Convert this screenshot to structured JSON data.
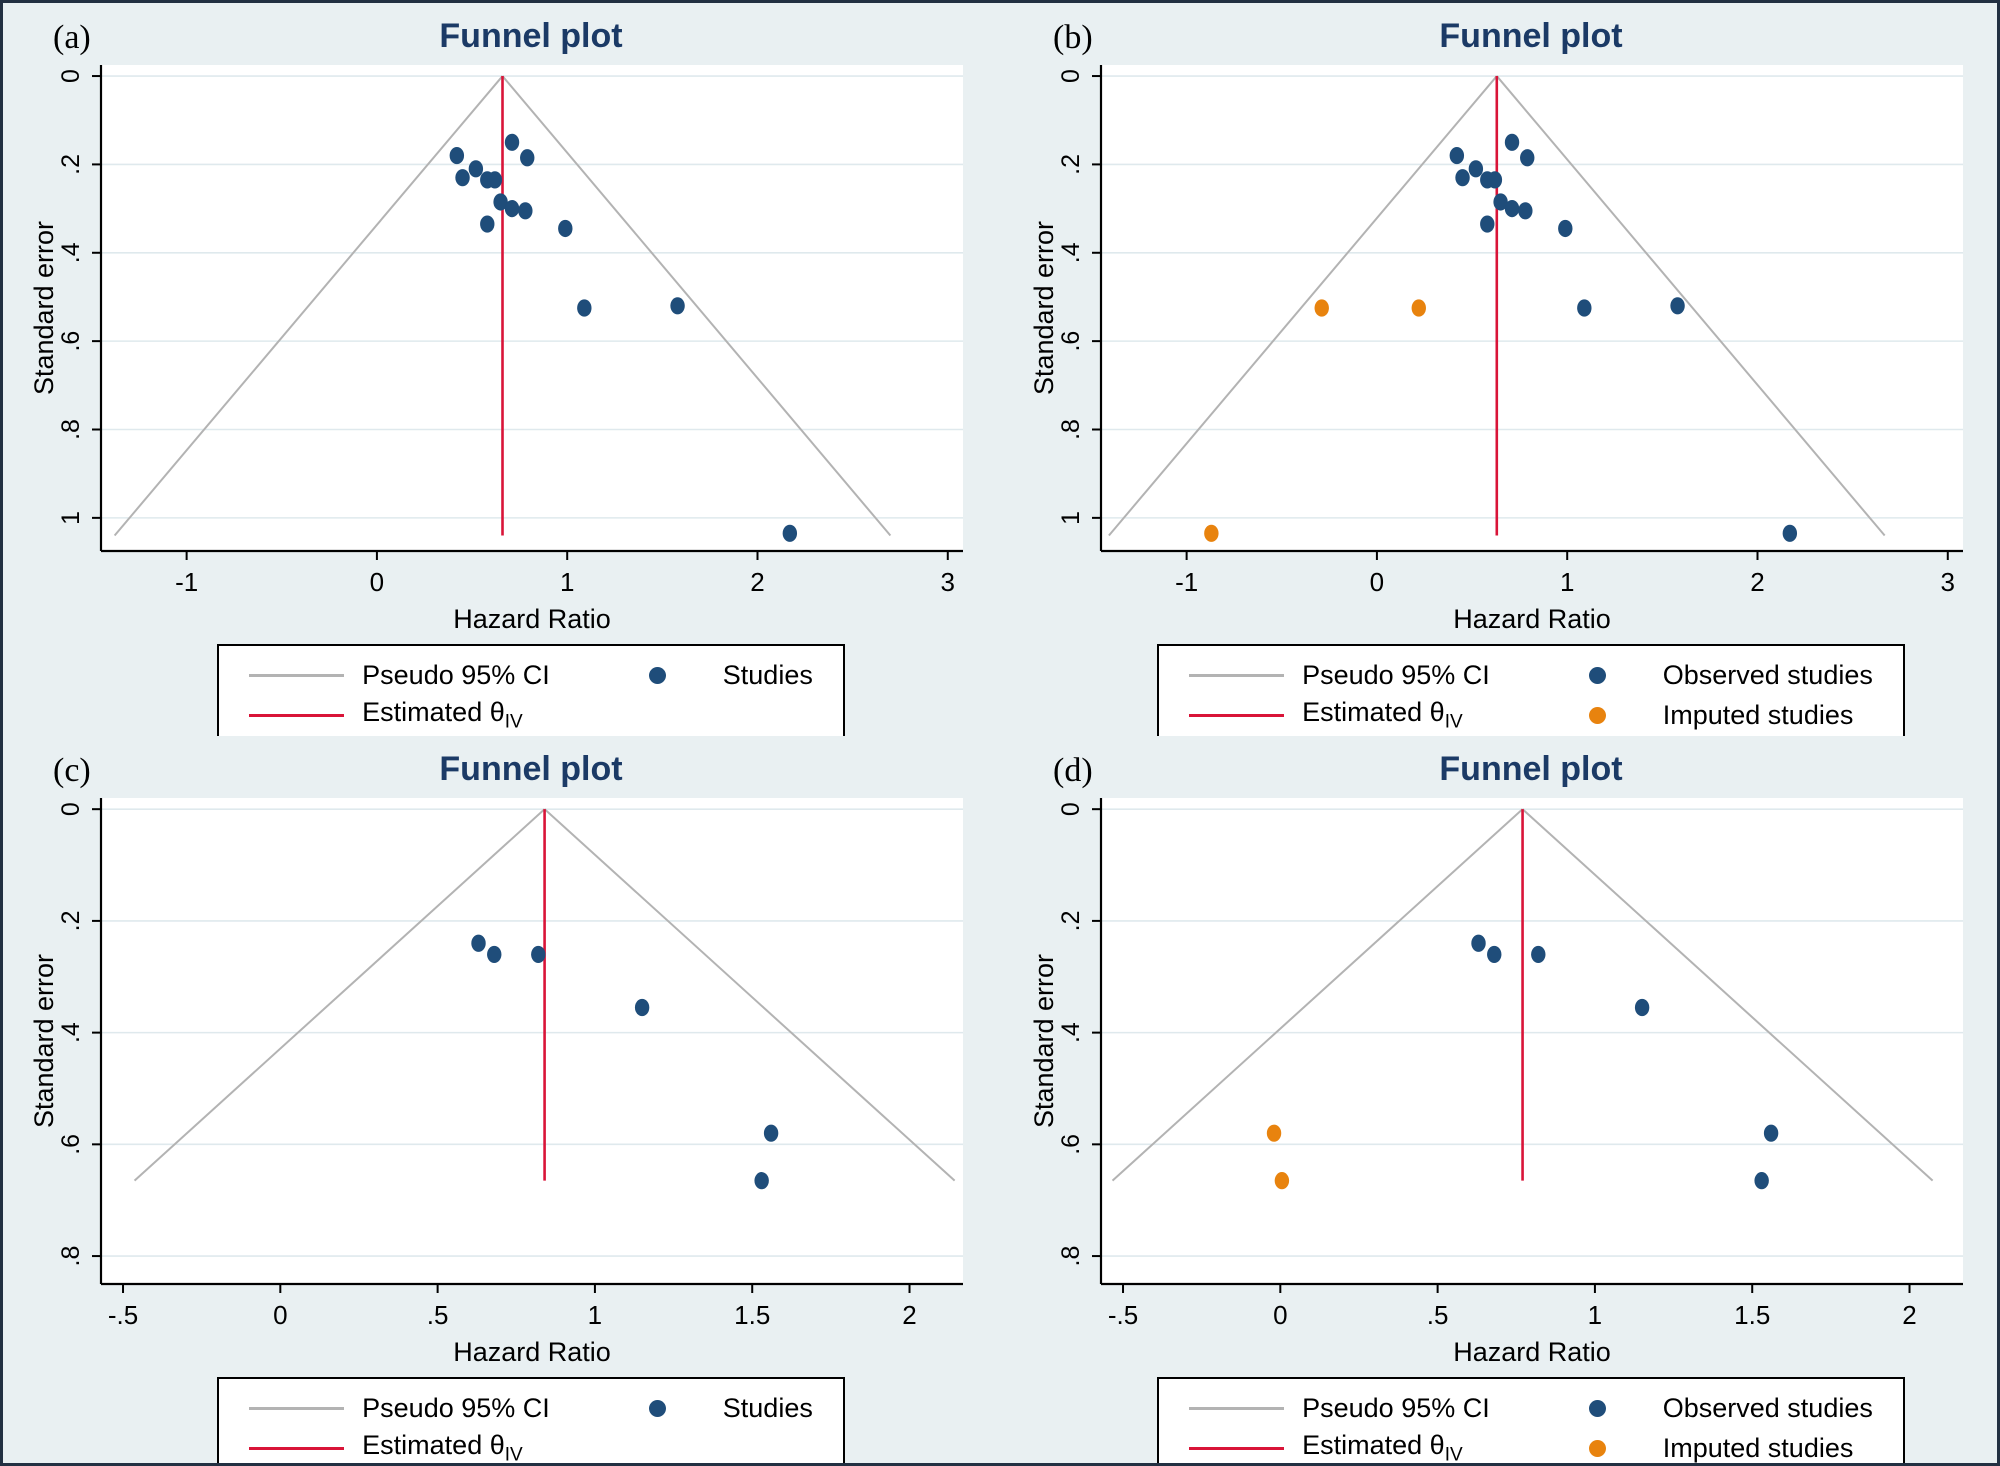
{
  "colors": {
    "background": "#e9f0f2",
    "plot_background": "#ffffff",
    "gridline": "#dfe9ed",
    "axis": "#000000",
    "title": "#1b3a66",
    "observed_dot": "#1f4d7a",
    "imputed_dot": "#e8830e",
    "estimate_line": "#d91438",
    "ci_line": "#b3b3b3",
    "frame_border": "#223042",
    "legend_border": "#000000"
  },
  "chart_data": [
    {
      "id": "a",
      "panel_label": "(a)",
      "type": "scatter",
      "title": "Funnel plot",
      "xlabel": "Hazard Ratio",
      "ylabel": "Standard error",
      "xlim": [
        -1.45,
        3.08
      ],
      "ylim": [
        -0.025,
        1.075
      ],
      "y_axis_inverted": true,
      "grid": "horizontal-only",
      "xticks": [
        {
          "v": -1,
          "label": "-1"
        },
        {
          "v": 0,
          "label": "0"
        },
        {
          "v": 1,
          "label": "1"
        },
        {
          "v": 2,
          "label": "2"
        },
        {
          "v": 3,
          "label": "3"
        }
      ],
      "yticks": [
        {
          "v": 0,
          "label": "0"
        },
        {
          "v": 0.2,
          "label": ".2"
        },
        {
          "v": 0.4,
          "label": ".4"
        },
        {
          "v": 0.6,
          "label": ".6"
        },
        {
          "v": 0.8,
          "label": ".8"
        },
        {
          "v": 1,
          "label": "1"
        }
      ],
      "estimated_theta_iv": 0.66,
      "funnel": {
        "apex_x": 0.66,
        "max_se": 1.04,
        "ci_multiplier": 1.96
      },
      "series": [
        {
          "name": "Studies",
          "color_key": "observed_dot",
          "points": [
            [
              0.42,
              0.18
            ],
            [
              0.71,
              0.15
            ],
            [
              0.79,
              0.185
            ],
            [
              0.52,
              0.21
            ],
            [
              0.45,
              0.23
            ],
            [
              0.58,
              0.235
            ],
            [
              0.62,
              0.235
            ],
            [
              0.65,
              0.285
            ],
            [
              0.71,
              0.3
            ],
            [
              0.78,
              0.305
            ],
            [
              0.58,
              0.335
            ],
            [
              0.99,
              0.345
            ],
            [
              1.09,
              0.525
            ],
            [
              1.58,
              0.52
            ],
            [
              2.17,
              1.035
            ]
          ]
        }
      ],
      "legend": [
        {
          "symbol": "line",
          "color_key": "ci_line",
          "label": "Pseudo 95% CI"
        },
        {
          "symbol": "line",
          "color_key": "estimate_line",
          "label": "Estimated θ",
          "label_subscript": "IV"
        },
        {
          "symbol": "dot",
          "color_key": "observed_dot",
          "label": "Studies"
        }
      ]
    },
    {
      "id": "b",
      "panel_label": "(b)",
      "type": "scatter",
      "title": "Funnel plot",
      "xlabel": "Hazard Ratio",
      "ylabel": "Standard error",
      "xlim": [
        -1.45,
        3.08
      ],
      "ylim": [
        -0.025,
        1.075
      ],
      "y_axis_inverted": true,
      "grid": "horizontal-only",
      "xticks": [
        {
          "v": -1,
          "label": "-1"
        },
        {
          "v": 0,
          "label": "0"
        },
        {
          "v": 1,
          "label": "1"
        },
        {
          "v": 2,
          "label": "2"
        },
        {
          "v": 3,
          "label": "3"
        }
      ],
      "yticks": [
        {
          "v": 0,
          "label": "0"
        },
        {
          "v": 0.2,
          "label": ".2"
        },
        {
          "v": 0.4,
          "label": ".4"
        },
        {
          "v": 0.6,
          "label": ".6"
        },
        {
          "v": 0.8,
          "label": ".8"
        },
        {
          "v": 1,
          "label": "1"
        }
      ],
      "estimated_theta_iv": 0.63,
      "funnel": {
        "apex_x": 0.63,
        "max_se": 1.04,
        "ci_multiplier": 1.96
      },
      "series": [
        {
          "name": "Observed studies",
          "color_key": "observed_dot",
          "points": [
            [
              0.42,
              0.18
            ],
            [
              0.71,
              0.15
            ],
            [
              0.79,
              0.185
            ],
            [
              0.52,
              0.21
            ],
            [
              0.45,
              0.23
            ],
            [
              0.58,
              0.235
            ],
            [
              0.62,
              0.235
            ],
            [
              0.65,
              0.285
            ],
            [
              0.71,
              0.3
            ],
            [
              0.78,
              0.305
            ],
            [
              0.58,
              0.335
            ],
            [
              0.99,
              0.345
            ],
            [
              1.09,
              0.525
            ],
            [
              1.58,
              0.52
            ],
            [
              2.17,
              1.035
            ]
          ]
        },
        {
          "name": "Imputed studies",
          "color_key": "imputed_dot",
          "points": [
            [
              -0.29,
              0.525
            ],
            [
              0.22,
              0.525
            ],
            [
              -0.87,
              1.035
            ]
          ]
        }
      ],
      "legend": [
        {
          "symbol": "line",
          "color_key": "ci_line",
          "label": "Pseudo 95% CI"
        },
        {
          "symbol": "line",
          "color_key": "estimate_line",
          "label": "Estimated θ",
          "label_subscript": "IV"
        },
        {
          "symbol": "dot",
          "color_key": "observed_dot",
          "label": "Observed studies"
        },
        {
          "symbol": "dot",
          "color_key": "imputed_dot",
          "label": "Imputed studies"
        }
      ]
    },
    {
      "id": "c",
      "panel_label": "(c)",
      "type": "scatter",
      "title": "Funnel plot",
      "xlabel": "Hazard Ratio",
      "ylabel": "Standard error",
      "xlim": [
        -0.57,
        2.17
      ],
      "ylim": [
        -0.02,
        0.85
      ],
      "y_axis_inverted": true,
      "grid": "horizontal-only",
      "xticks": [
        {
          "v": -0.5,
          "label": "-.5"
        },
        {
          "v": 0,
          "label": "0"
        },
        {
          "v": 0.5,
          "label": ".5"
        },
        {
          "v": 1,
          "label": "1"
        },
        {
          "v": 1.5,
          "label": "1.5"
        },
        {
          "v": 2,
          "label": "2"
        }
      ],
      "yticks": [
        {
          "v": 0,
          "label": "0"
        },
        {
          "v": 0.2,
          "label": ".2"
        },
        {
          "v": 0.4,
          "label": ".4"
        },
        {
          "v": 0.6,
          "label": ".6"
        },
        {
          "v": 0.8,
          "label": ".8"
        }
      ],
      "estimated_theta_iv": 0.84,
      "funnel": {
        "apex_x": 0.84,
        "max_se": 0.665,
        "ci_multiplier": 1.96
      },
      "series": [
        {
          "name": "Studies",
          "color_key": "observed_dot",
          "points": [
            [
              0.63,
              0.24
            ],
            [
              0.68,
              0.26
            ],
            [
              0.82,
              0.26
            ],
            [
              1.15,
              0.355
            ],
            [
              1.56,
              0.58
            ],
            [
              1.53,
              0.665
            ]
          ]
        }
      ],
      "legend": [
        {
          "symbol": "line",
          "color_key": "ci_line",
          "label": "Pseudo 95% CI"
        },
        {
          "symbol": "line",
          "color_key": "estimate_line",
          "label": "Estimated θ",
          "label_subscript": "IV"
        },
        {
          "symbol": "dot",
          "color_key": "observed_dot",
          "label": "Studies"
        }
      ]
    },
    {
      "id": "d",
      "panel_label": "(d)",
      "type": "scatter",
      "title": "Funnel plot",
      "xlabel": "Hazard Ratio",
      "ylabel": "Standard error",
      "xlim": [
        -0.57,
        2.17
      ],
      "ylim": [
        -0.02,
        0.85
      ],
      "y_axis_inverted": true,
      "grid": "horizontal-only",
      "xticks": [
        {
          "v": -0.5,
          "label": "-.5"
        },
        {
          "v": 0,
          "label": "0"
        },
        {
          "v": 0.5,
          "label": ".5"
        },
        {
          "v": 1,
          "label": "1"
        },
        {
          "v": 1.5,
          "label": "1.5"
        },
        {
          "v": 2,
          "label": "2"
        }
      ],
      "yticks": [
        {
          "v": 0,
          "label": "0"
        },
        {
          "v": 0.2,
          "label": ".2"
        },
        {
          "v": 0.4,
          "label": ".4"
        },
        {
          "v": 0.6,
          "label": ".6"
        },
        {
          "v": 0.8,
          "label": ".8"
        }
      ],
      "estimated_theta_iv": 0.77,
      "funnel": {
        "apex_x": 0.77,
        "max_se": 0.665,
        "ci_multiplier": 1.96
      },
      "series": [
        {
          "name": "Observed studies",
          "color_key": "observed_dot",
          "points": [
            [
              0.63,
              0.24
            ],
            [
              0.68,
              0.26
            ],
            [
              0.82,
              0.26
            ],
            [
              1.15,
              0.355
            ],
            [
              1.56,
              0.58
            ],
            [
              1.53,
              0.665
            ]
          ]
        },
        {
          "name": "Imputed studies",
          "color_key": "imputed_dot",
          "points": [
            [
              -0.02,
              0.58
            ],
            [
              0.005,
              0.665
            ]
          ]
        }
      ],
      "legend": [
        {
          "symbol": "line",
          "color_key": "ci_line",
          "label": "Pseudo 95% CI"
        },
        {
          "symbol": "line",
          "color_key": "estimate_line",
          "label": "Estimated θ",
          "label_subscript": "IV"
        },
        {
          "symbol": "dot",
          "color_key": "observed_dot",
          "label": "Observed studies"
        },
        {
          "symbol": "dot",
          "color_key": "imputed_dot",
          "label": "Imputed studies"
        }
      ]
    }
  ]
}
